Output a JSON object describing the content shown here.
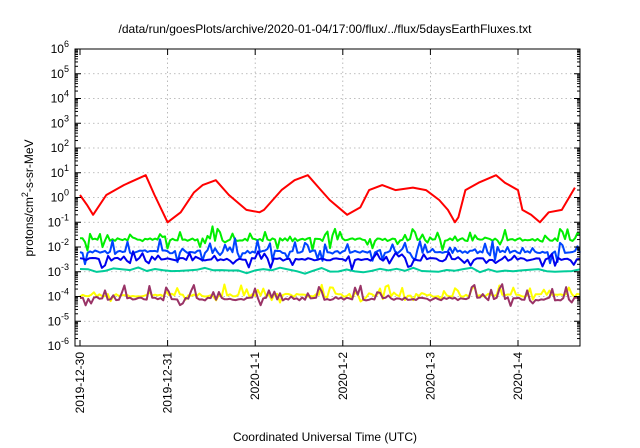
{
  "chart_data": {
    "type": "line",
    "title": "/data/run/goesPlots/archive/2020-01-04/17:00/flux/../flux/5daysEarthFluxes.txt",
    "xlabel": "Coordinated Universal Time (UTC)",
    "ylabel_parts": [
      "protons/cm",
      "2",
      "-s-sr-MeV"
    ],
    "y_scale": "log",
    "ylim": [
      -6,
      6
    ],
    "y_ticks": [
      {
        "base": "10",
        "exp": "-6"
      },
      {
        "base": "10",
        "exp": "-5"
      },
      {
        "base": "10",
        "exp": "-4"
      },
      {
        "base": "10",
        "exp": "-3"
      },
      {
        "base": "10",
        "exp": "-2"
      },
      {
        "base": "10",
        "exp": "-1"
      },
      {
        "base": "10",
        "exp": "0"
      },
      {
        "base": "10",
        "exp": "1"
      },
      {
        "base": "10",
        "exp": "2"
      },
      {
        "base": "10",
        "exp": "3"
      },
      {
        "base": "10",
        "exp": "4"
      },
      {
        "base": "10",
        "exp": "5"
      },
      {
        "base": "10",
        "exp": "6"
      }
    ],
    "x_ticks": [
      "2019-12-30",
      "2019-12-31",
      "2020-1-1",
      "2020-1-2",
      "2020-1-3",
      "2020-1-4"
    ],
    "grid": true,
    "legend": "none",
    "series": [
      {
        "color": "#ff0000",
        "x_day": [
          0,
          0.08,
          0.15,
          0.3,
          0.5,
          0.75,
          0.85,
          1.0,
          1.15,
          1.3,
          1.4,
          1.55,
          1.7,
          1.9,
          2.05,
          2.1,
          2.3,
          2.45,
          2.6,
          2.75,
          2.85,
          3.05,
          3.2,
          3.3,
          3.45,
          3.6,
          3.8,
          3.95,
          4.1,
          4.2,
          4.28,
          4.32,
          4.4,
          4.55,
          4.75,
          4.85,
          5.0,
          5.05,
          5.15,
          5.25,
          5.35,
          5.5,
          5.65
        ],
        "y_log10": [
          0.1,
          -0.3,
          -0.7,
          0.1,
          0.5,
          0.9,
          0.1,
          -1.0,
          -0.6,
          0.2,
          0.5,
          0.7,
          0.1,
          -0.5,
          -0.6,
          -0.5,
          0.3,
          0.7,
          0.9,
          0.3,
          -0.1,
          -0.7,
          -0.4,
          0.3,
          0.5,
          0.3,
          0.4,
          0.3,
          -0.1,
          -0.5,
          -1.0,
          -0.8,
          0.3,
          0.6,
          0.9,
          0.6,
          0.3,
          -0.5,
          -0.7,
          -1.0,
          -0.6,
          -0.5,
          0.4
        ]
      },
      {
        "color": "#00ee00",
        "base_log10": -1.7,
        "amp": 0.5,
        "down": 0.4,
        "n": 200,
        "seed": 7
      },
      {
        "color": "#0044ff",
        "base_log10": -2.2,
        "amp": 0.5,
        "down": 0.5,
        "n": 200,
        "seed": 13
      },
      {
        "color": "#0000ee",
        "base_log10": -2.5,
        "amp": 0.3,
        "down": 0.4,
        "n": 160,
        "seed": 29
      },
      {
        "color": "#00cc99",
        "base_log10": -2.95,
        "amp": 0.12,
        "down": 0.1,
        "n": 60,
        "seed": 41
      },
      {
        "color": "#ffff00",
        "base_log10": -3.95,
        "amp": 0.45,
        "down": 0.3,
        "n": 180,
        "seed": 53
      },
      {
        "color": "#993366",
        "base_log10": -4.1,
        "amp": 0.6,
        "down": 0.35,
        "n": 180,
        "seed": 61
      }
    ]
  }
}
